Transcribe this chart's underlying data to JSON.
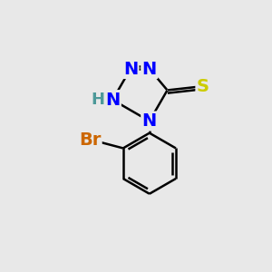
{
  "background_color": "#e8e8e8",
  "atom_colors": {
    "N": "#0000ff",
    "S": "#cccc00",
    "Br": "#cc6600",
    "C": "#000000",
    "H": "#4d9999"
  },
  "bond_lw": 1.8,
  "font_size": 14
}
